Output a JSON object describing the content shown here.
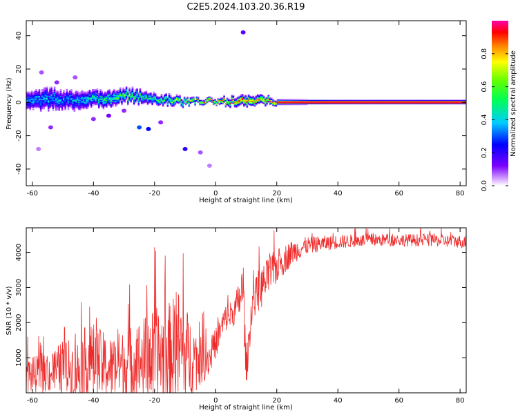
{
  "title": "C2E5.2024.103.20.36.R19",
  "chart_data": [
    {
      "type": "heatmap",
      "xlabel": "Height of straight line (km)",
      "ylabel": "Frequency (Hz)",
      "xlim": [
        -62,
        82
      ],
      "ylim": [
        -50,
        49
      ],
      "xticks": [
        -60,
        -40,
        -20,
        0,
        20,
        40,
        60,
        80
      ],
      "yticks": [
        -40,
        -20,
        0,
        20,
        40
      ],
      "colorbar": {
        "label": "Normalized spectral amplitude",
        "range": [
          0,
          1
        ],
        "ticks": [
          "0.0",
          "0.2",
          "0.4",
          "0.6",
          "0.8"
        ],
        "colormap": "rainbow (white-purple-blue-cyan-green-yellow-red-magenta)"
      },
      "ridge": {
        "description": "frequency of peak amplitude vs height",
        "x": [
          -60,
          -55,
          -50,
          -45,
          -40,
          -35,
          -30,
          -25,
          -20,
          -15,
          -10,
          -5,
          0,
          5,
          10,
          15,
          20,
          40,
          60,
          80
        ],
        "frequency": [
          0.5,
          2,
          1.5,
          1,
          2,
          1.5,
          4,
          3,
          1.5,
          1,
          0,
          0.5,
          0.5,
          0.5,
          1,
          1,
          0,
          0,
          0,
          0
        ],
        "normalized_amplitude": [
          0.35,
          0.4,
          0.35,
          0.4,
          0.45,
          0.5,
          0.6,
          0.55,
          0.55,
          0.6,
          0.7,
          0.85,
          0.9,
          0.85,
          0.9,
          0.9,
          0.95,
          1.0,
          1.0,
          1.0
        ],
        "spread_hz": [
          6,
          7,
          6,
          6,
          5,
          5,
          4,
          4,
          3,
          3,
          2,
          1.5,
          1.5,
          2.5,
          3,
          2.5,
          1.5,
          1.2,
          1.2,
          1.2
        ]
      }
    },
    {
      "type": "line",
      "xlabel": "Height of straight line (km)",
      "ylabel": "SNR (10 * v/v)",
      "xlim": [
        -62,
        82
      ],
      "ylim": [
        0,
        4700
      ],
      "xticks": [
        -60,
        -40,
        -20,
        0,
        20,
        40,
        60,
        80
      ],
      "yticks": [
        1000,
        2000,
        3000,
        4000
      ],
      "color": "#ee2b2b",
      "envelope": {
        "x": [
          -62,
          -55,
          -50,
          -45,
          -42,
          -40,
          -35,
          -30,
          -25,
          -20,
          -15,
          -12,
          -10,
          -5,
          -2,
          0,
          3,
          6,
          8,
          9,
          10,
          12,
          15,
          18,
          20,
          25,
          30,
          40,
          50,
          60,
          70,
          82
        ],
        "mean": [
          500,
          550,
          700,
          650,
          900,
          900,
          700,
          800,
          900,
          1000,
          1100,
          1300,
          1100,
          900,
          1000,
          1400,
          2100,
          2300,
          2700,
          3000,
          600,
          2600,
          3000,
          3400,
          3600,
          4000,
          4200,
          4300,
          4350,
          4350,
          4350,
          4300
        ],
        "spread": [
          500,
          550,
          800,
          900,
          1100,
          1100,
          900,
          1000,
          1200,
          1400,
          1500,
          1700,
          1400,
          700,
          500,
          450,
          400,
          400,
          600,
          900,
          500,
          500,
          600,
          550,
          500,
          350,
          250,
          200,
          180,
          180,
          180,
          180
        ]
      }
    }
  ]
}
